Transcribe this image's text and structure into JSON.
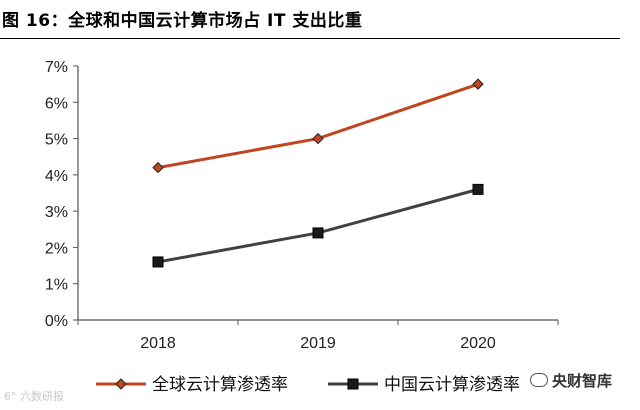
{
  "figure": {
    "title": "图 16：全球和中国云计算市场占 IT 支出比重"
  },
  "chart_data": {
    "type": "line",
    "x": [
      "2018",
      "2019",
      "2020"
    ],
    "series": [
      {
        "name": "全球云计算渗透率",
        "values": [
          4.2,
          5.0,
          6.5
        ],
        "color": "#c0461f",
        "marker": "diamond"
      },
      {
        "name": "中国云计算渗透率",
        "values": [
          1.6,
          2.4,
          3.6
        ],
        "color": "#404048",
        "marker": "square"
      }
    ],
    "ylim": [
      0,
      7
    ],
    "yticks": [
      "0%",
      "1%",
      "2%",
      "3%",
      "4%",
      "5%",
      "6%",
      "7%"
    ],
    "grid": false,
    "legend": "bottom"
  },
  "watermarks": {
    "left": "6° 六数研报",
    "right": "央财智库"
  }
}
